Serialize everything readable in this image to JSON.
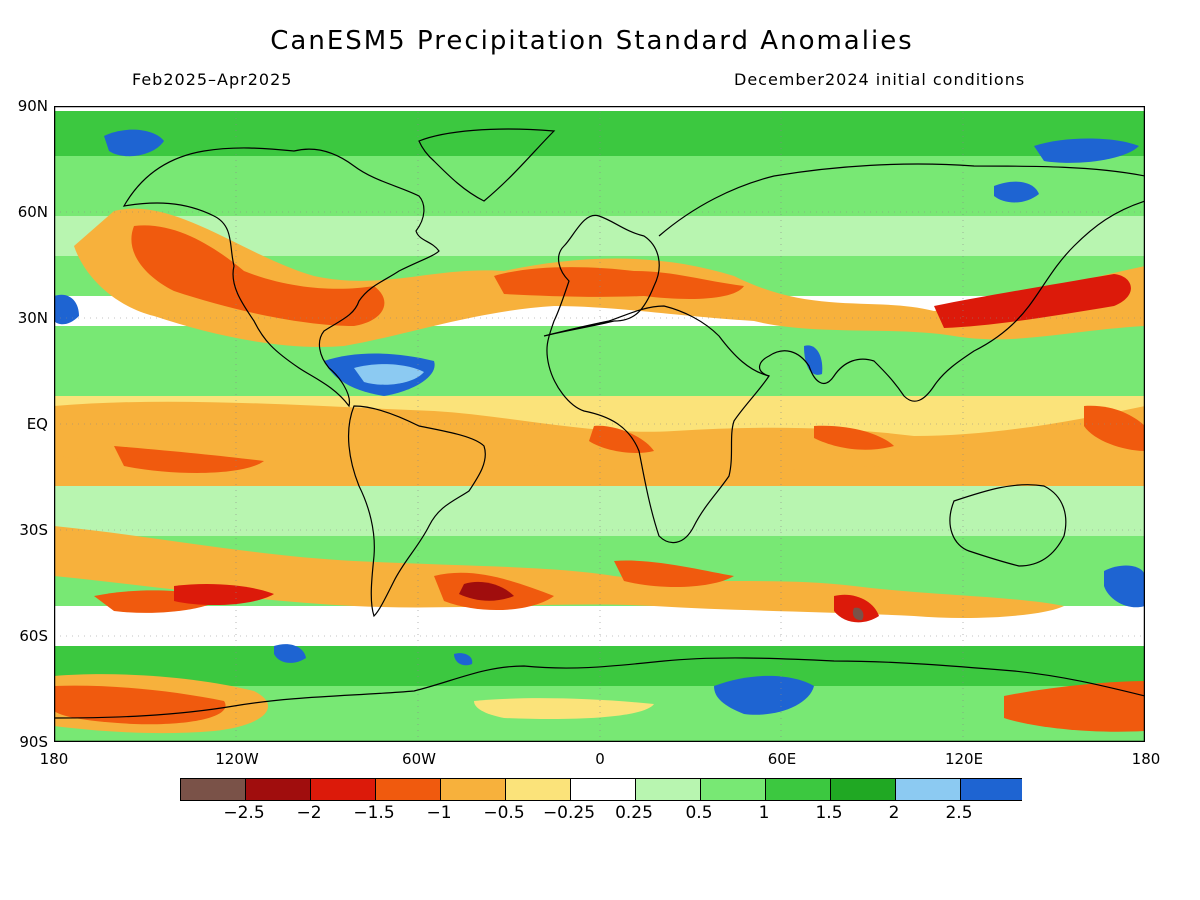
{
  "title": "CanESM5 Precipitation Standard Anomalies",
  "subtitle_left": "Feb2025–Apr2025",
  "subtitle_right": "December2024 initial conditions",
  "lat_labels": [
    "90N",
    "60N",
    "30N",
    "EQ",
    "30S",
    "60S",
    "90S"
  ],
  "lon_labels": [
    "180",
    "120W",
    "60W",
    "0",
    "60E",
    "120E",
    "180"
  ],
  "legend": {
    "labels": [
      "−2.5",
      "−2",
      "−1.5",
      "−1",
      "−0.5",
      "−0.25",
      "0.25",
      "0.5",
      "1",
      "1.5",
      "2",
      "2.5"
    ],
    "colors": [
      "#7a5248",
      "#a00d0d",
      "#dc1a0a",
      "#f05a0e",
      "#f7b13c",
      "#fbe37a",
      "#ffffff",
      "#b8f5b0",
      "#78e874",
      "#3cc840",
      "#20a823",
      "#8ccaf2",
      "#1e64d2"
    ]
  },
  "map_colors": {
    "ocean_neutral": "#ffffff",
    "coastline": "#000000"
  }
}
